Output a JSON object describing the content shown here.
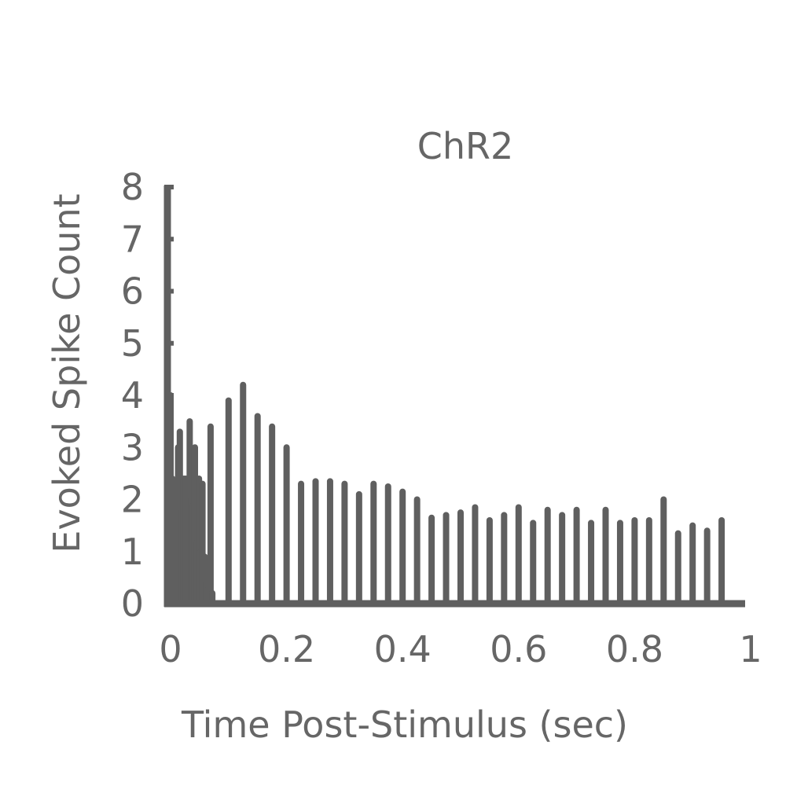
{
  "chart_data": {
    "type": "bar",
    "title": "ChR2",
    "xlabel": "Time Post-Stimulus (sec)",
    "ylabel": "Evoked Spike Count",
    "xlim": [
      0,
      1
    ],
    "ylim": [
      0,
      8
    ],
    "xticks": [
      "0",
      "0.2",
      "0.4",
      "0.6",
      "0.8",
      "1"
    ],
    "yticks": [
      "0",
      "1",
      "2",
      "3",
      "4",
      "5",
      "6",
      "7",
      "8"
    ],
    "grid": false,
    "series_color": "#5f5f5f",
    "x": [
      0.0,
      0.003,
      0.006,
      0.009,
      0.013,
      0.016,
      0.019,
      0.023,
      0.026,
      0.029,
      0.033,
      0.036,
      0.039,
      0.042,
      0.046,
      0.049,
      0.052,
      0.055,
      0.059,
      0.062,
      0.065,
      0.069,
      0.072,
      0.1,
      0.125,
      0.15,
      0.175,
      0.2,
      0.225,
      0.25,
      0.275,
      0.3,
      0.325,
      0.35,
      0.375,
      0.4,
      0.425,
      0.45,
      0.475,
      0.5,
      0.525,
      0.55,
      0.575,
      0.6,
      0.625,
      0.65,
      0.675,
      0.7,
      0.725,
      0.75,
      0.775,
      0.8,
      0.825,
      0.85,
      0.875,
      0.9,
      0.925,
      0.95,
      0.975
    ],
    "values": [
      4.0,
      2.4,
      1.2,
      2.2,
      3.0,
      3.3,
      1.8,
      2.4,
      2.4,
      1.7,
      3.5,
      2.0,
      1.9,
      3.0,
      1.2,
      2.4,
      1.0,
      2.3,
      0.9,
      0.4,
      0.3,
      3.4,
      0.2,
      3.9,
      4.2,
      3.6,
      3.4,
      3.0,
      2.3,
      2.35,
      2.35,
      2.3,
      2.1,
      2.3,
      2.25,
      2.15,
      2.0,
      1.65,
      1.7,
      1.75,
      1.85,
      1.6,
      1.7,
      1.85,
      1.55,
      1.8,
      1.7,
      1.8,
      1.55,
      1.8,
      1.55,
      1.6,
      1.6,
      2.0,
      1.35,
      1.5,
      1.4,
      1.6,
      0.0
    ]
  }
}
